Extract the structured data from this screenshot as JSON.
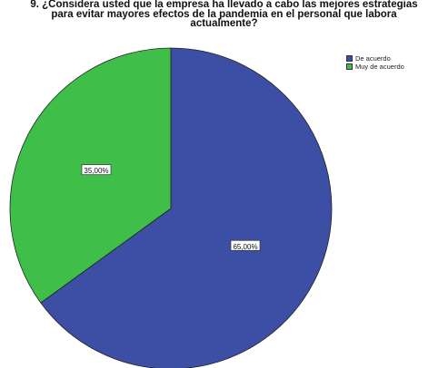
{
  "chart_data": {
    "type": "pie",
    "title_lines": [
      "9. ¿Considera usted que la empresa ha llevado a cabo las mejores estrategias",
      "para evitar mayores efectos de la pandemia en el personal que labora",
      "actualmente?"
    ],
    "categories": [
      "De acuerdo",
      "Muy de acuerdo"
    ],
    "values": [
      65.0,
      35.0
    ],
    "data_labels": [
      "65,00%",
      "35,00%"
    ],
    "colors": [
      "#3d4ea5",
      "#3fbf4a"
    ],
    "legend_placement": "top-right"
  }
}
